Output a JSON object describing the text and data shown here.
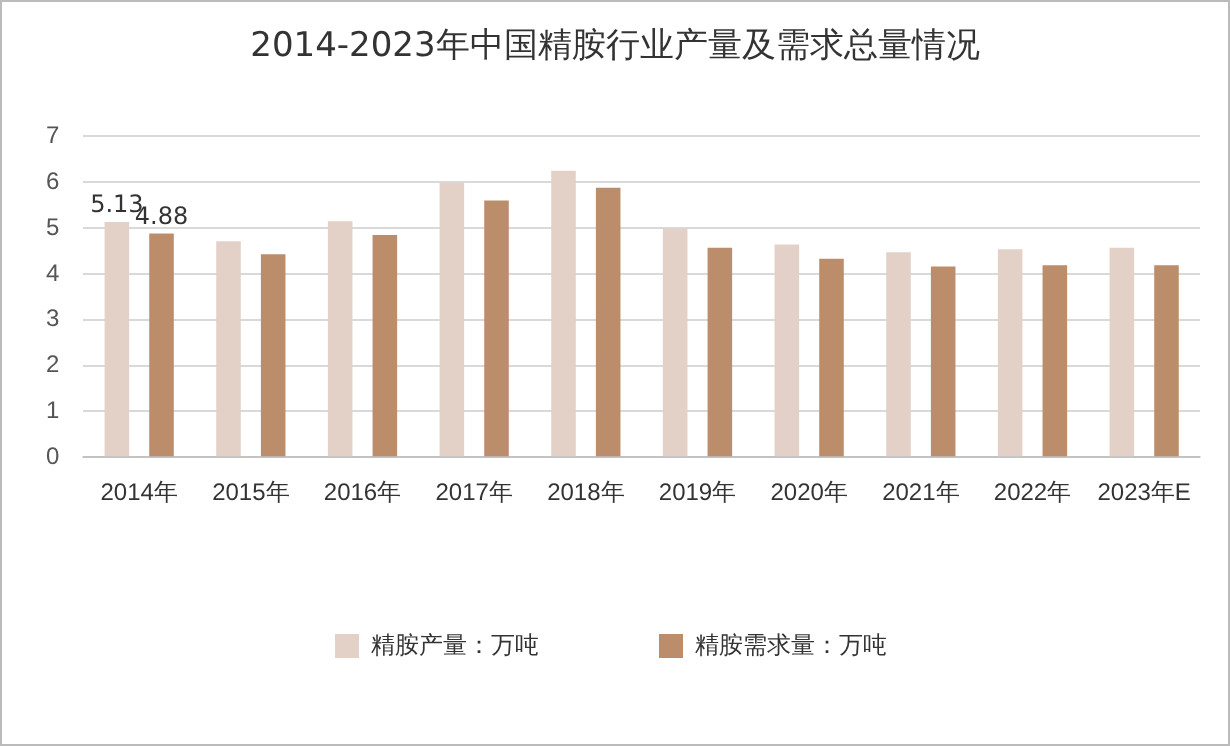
{
  "chart_data": {
    "type": "bar",
    "title": "2014-2023年中国精胺行业产量及需求总量情况",
    "categories": [
      "2014年",
      "2015年",
      "2016年",
      "2017年",
      "2018年",
      "2019年",
      "2020年",
      "2021年",
      "2022年",
      "2023年E"
    ],
    "series": [
      {
        "name": "精胺产量：万吨",
        "color": "#e3d1c8",
        "values": [
          5.13,
          4.71,
          5.15,
          5.99,
          6.25,
          4.99,
          4.64,
          4.47,
          4.54,
          4.57
        ],
        "value_labels": [
          "5.13",
          null,
          null,
          null,
          null,
          null,
          null,
          null,
          null,
          null
        ]
      },
      {
        "name": "精胺需求量：万吨",
        "color": "#bc8d6b",
        "values": [
          4.88,
          4.43,
          4.85,
          5.6,
          5.88,
          4.57,
          4.33,
          4.16,
          4.19,
          4.19
        ],
        "value_labels": [
          "4.88",
          null,
          null,
          null,
          null,
          null,
          null,
          null,
          null,
          null
        ]
      }
    ],
    "ylim": [
      0,
      7
    ],
    "yticks": [
      0,
      1,
      2,
      3,
      4,
      5,
      6,
      7
    ],
    "grid": "y",
    "legend": "bottom"
  }
}
